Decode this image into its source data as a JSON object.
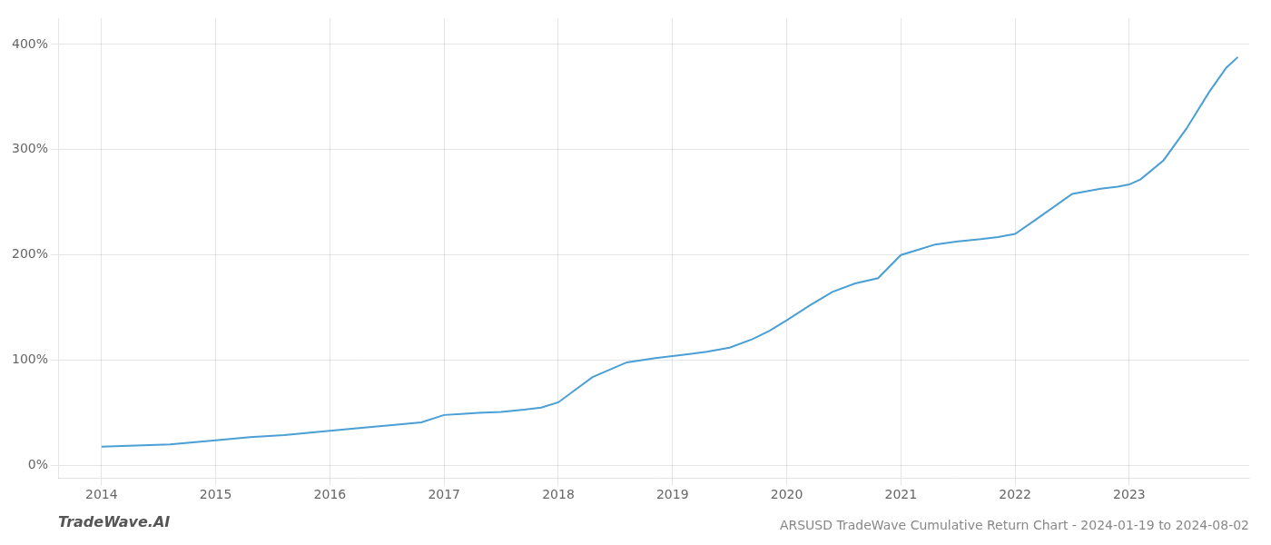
{
  "chart_data": {
    "type": "line",
    "title": "ARSUSD TradeWave Cumulative Return Chart - 2024-01-19 to 2024-08-02",
    "annotations": [
      "TradeWave.AI"
    ],
    "x": [
      2014.0,
      2014.3,
      2014.6,
      2015.0,
      2015.3,
      2015.6,
      2016.0,
      2016.3,
      2016.5,
      2016.8,
      2017.0,
      2017.15,
      2017.3,
      2017.5,
      2017.7,
      2017.85,
      2018.0,
      2018.15,
      2018.3,
      2018.6,
      2018.85,
      2019.0,
      2019.15,
      2019.3,
      2019.5,
      2019.7,
      2019.85,
      2020.0,
      2020.2,
      2020.4,
      2020.6,
      2020.8,
      2021.0,
      2021.15,
      2021.3,
      2021.5,
      2021.7,
      2021.85,
      2022.0,
      2022.2,
      2022.5,
      2022.75,
      2022.9,
      2023.0,
      2023.1,
      2023.3,
      2023.5,
      2023.7,
      2023.85,
      2023.95
    ],
    "values": [
      0.18,
      0.19,
      0.2,
      0.24,
      0.27,
      0.29,
      0.33,
      0.36,
      0.38,
      0.41,
      0.48,
      0.49,
      0.5,
      0.51,
      0.53,
      0.55,
      0.6,
      0.72,
      0.84,
      0.98,
      1.02,
      1.04,
      1.06,
      1.08,
      1.12,
      1.2,
      1.28,
      1.38,
      1.52,
      1.65,
      1.73,
      1.78,
      2.0,
      2.05,
      2.1,
      2.13,
      2.15,
      2.17,
      2.2,
      2.35,
      2.58,
      2.63,
      2.65,
      2.67,
      2.72,
      2.9,
      3.2,
      3.55,
      3.78,
      3.88
    ],
    "color": "#4a9fd4",
    "xlim": [
      2013.62,
      2024.05
    ],
    "ylim": [
      -0.12,
      4.25
    ],
    "xticks": [
      2014,
      2015,
      2016,
      2017,
      2018,
      2019,
      2020,
      2021,
      2022,
      2023
    ],
    "yticks": [
      {
        "value": 0.0,
        "label": "0%"
      },
      {
        "value": 1.0,
        "label": "100%"
      },
      {
        "value": 2.0,
        "label": "200%"
      },
      {
        "value": 3.0,
        "label": "300%"
      },
      {
        "value": 4.0,
        "label": "400%"
      }
    ],
    "grid": true
  }
}
